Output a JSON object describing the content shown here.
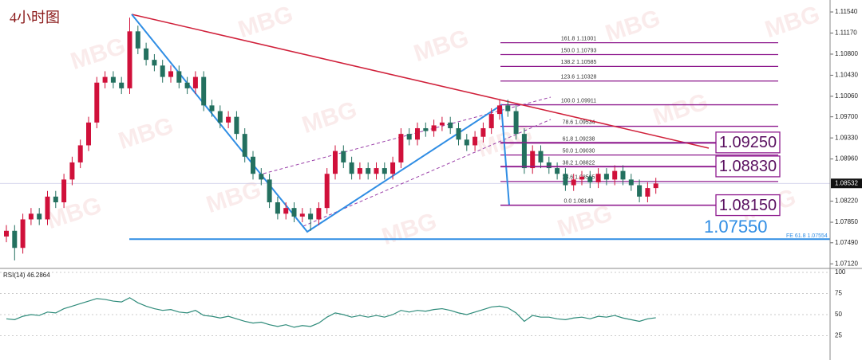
{
  "chart_data": [
    {
      "type": "candlestick",
      "title": "4小时图",
      "watermark": "MBG",
      "ylim": [
        1.0704,
        1.1175
      ],
      "yticks": [
        {
          "value": 1.1154,
          "label": "1.11540"
        },
        {
          "value": 1.1117,
          "label": "1.11170"
        },
        {
          "value": 1.108,
          "label": "1.10800"
        },
        {
          "value": 1.1043,
          "label": "1.10430"
        },
        {
          "value": 1.1006,
          "label": "1.10060"
        },
        {
          "value": 1.097,
          "label": "1.09700"
        },
        {
          "value": 1.0933,
          "label": "1.09330"
        },
        {
          "value": 1.0896,
          "label": "1.08960"
        },
        {
          "value": 1.0822,
          "label": "1.08220"
        },
        {
          "value": 1.0785,
          "label": "1.07850"
        },
        {
          "value": 1.0749,
          "label": "1.07490"
        },
        {
          "value": 1.0712,
          "label": "1.07120"
        }
      ],
      "up_color": "#d0103a",
      "down_color": "#23705f",
      "last_price": 1.08532,
      "open": [
        1.076,
        1.077,
        1.074,
        1.079,
        1.08,
        1.079,
        1.083,
        1.082,
        1.086,
        1.089,
        1.092,
        1.096,
        1.103,
        1.104,
        1.103,
        1.102,
        1.112,
        1.109,
        1.107,
        1.106,
        1.104,
        1.105,
        1.103,
        1.102,
        1.104,
        1.099,
        1.098,
        1.096,
        1.097,
        1.094,
        1.09,
        1.087,
        1.086,
        1.082,
        1.08,
        1.081,
        1.0795,
        1.08,
        1.079,
        1.081,
        1.087,
        1.091,
        1.089,
        1.087,
        1.088,
        1.087,
        1.088,
        1.087,
        1.089,
        1.094,
        1.093,
        1.095,
        1.0945,
        1.0955,
        1.096,
        1.095,
        1.093,
        1.092,
        1.0935,
        1.095,
        1.0975,
        1.099,
        1.098,
        1.094,
        1.088,
        1.091,
        1.089,
        1.088,
        1.087,
        1.085,
        1.086,
        1.0865,
        1.0855,
        1.087,
        1.086,
        1.0875,
        1.086,
        1.085,
        1.083,
        1.0845
      ],
      "high": [
        1.078,
        1.078,
        1.08,
        1.081,
        1.081,
        1.084,
        1.084,
        1.087,
        1.09,
        1.093,
        1.097,
        1.104,
        1.105,
        1.105,
        1.104,
        1.1144,
        1.113,
        1.11,
        1.108,
        1.107,
        1.106,
        1.106,
        1.104,
        1.105,
        1.105,
        1.1,
        1.099,
        1.098,
        1.098,
        1.095,
        1.091,
        1.088,
        1.087,
        1.083,
        1.082,
        1.082,
        1.081,
        1.081,
        1.082,
        1.088,
        1.092,
        1.092,
        1.09,
        1.089,
        1.089,
        1.089,
        1.089,
        1.09,
        1.095,
        1.095,
        1.096,
        1.096,
        1.0965,
        1.097,
        1.097,
        1.096,
        1.094,
        1.0945,
        1.096,
        1.0985,
        1.1,
        1.1,
        1.099,
        1.095,
        1.092,
        1.092,
        1.09,
        1.089,
        1.088,
        1.087,
        1.0875,
        1.0875,
        1.088,
        1.088,
        1.0885,
        1.0885,
        1.087,
        1.086,
        1.0855,
        1.0863
      ],
      "low": [
        1.075,
        1.0718,
        1.073,
        1.078,
        1.078,
        1.078,
        1.081,
        1.081,
        1.085,
        1.088,
        1.091,
        1.095,
        1.102,
        1.102,
        1.101,
        1.101,
        1.108,
        1.106,
        1.105,
        1.103,
        1.103,
        1.102,
        1.101,
        1.101,
        1.098,
        1.097,
        1.095,
        1.095,
        1.093,
        1.089,
        1.086,
        1.085,
        1.081,
        1.079,
        1.079,
        1.0785,
        1.0785,
        1.077,
        1.078,
        1.08,
        1.086,
        1.088,
        1.086,
        1.086,
        1.086,
        1.086,
        1.086,
        1.086,
        1.088,
        1.092,
        1.092,
        1.0935,
        1.0935,
        1.0945,
        1.094,
        1.092,
        1.091,
        1.091,
        1.0925,
        1.094,
        1.0965,
        1.097,
        1.093,
        1.087,
        1.087,
        1.088,
        1.087,
        1.086,
        1.084,
        1.084,
        1.085,
        1.0845,
        1.0845,
        1.085,
        1.085,
        1.085,
        1.084,
        1.082,
        1.082,
        1.0835
      ],
      "close": [
        1.077,
        1.074,
        1.079,
        1.08,
        1.079,
        1.083,
        1.082,
        1.086,
        1.089,
        1.092,
        1.096,
        1.103,
        1.104,
        1.103,
        1.102,
        1.112,
        1.109,
        1.107,
        1.106,
        1.104,
        1.105,
        1.103,
        1.102,
        1.104,
        1.099,
        1.098,
        1.096,
        1.097,
        1.094,
        1.09,
        1.087,
        1.086,
        1.082,
        1.08,
        1.081,
        1.0795,
        1.08,
        1.079,
        1.081,
        1.087,
        1.091,
        1.089,
        1.087,
        1.088,
        1.087,
        1.088,
        1.087,
        1.089,
        1.094,
        1.093,
        1.095,
        1.0945,
        1.0955,
        1.096,
        1.095,
        1.093,
        1.092,
        1.0935,
        1.095,
        1.0975,
        1.099,
        1.098,
        1.094,
        1.088,
        1.091,
        1.089,
        1.088,
        1.087,
        1.085,
        1.086,
        1.0865,
        1.0855,
        1.087,
        1.086,
        1.0875,
        1.086,
        1.085,
        1.083,
        1.0845,
        1.0853
      ],
      "fibonacci": [
        {
          "value": 1.11001,
          "label": "161.8  1.11001"
        },
        {
          "value": 1.10793,
          "label": "150.0  1.10793"
        },
        {
          "value": 1.10585,
          "label": "138.2  1.10585"
        },
        {
          "value": 1.10328,
          "label": "123.6  1.10328"
        },
        {
          "value": 1.09911,
          "label": "100.0  1.09911"
        },
        {
          "value": 1.09534,
          "label": "78.6  1.09534"
        },
        {
          "value": 1.09238,
          "label": "61.8  1.09238"
        },
        {
          "value": 1.0903,
          "label": "50.0  1.09030"
        },
        {
          "value": 1.08822,
          "label": "38.2  1.08822"
        },
        {
          "value": 1.08565,
          "label": "23.6  1.08565"
        },
        {
          "value": 1.08148,
          "label": "0.0  1.08148"
        }
      ],
      "levels": [
        {
          "value": 1.0925,
          "label": "1.09250"
        },
        {
          "value": 1.0883,
          "label": "1.08830"
        },
        {
          "value": 1.0815,
          "label": "1.08150"
        }
      ],
      "fe_target": {
        "value": 1.07554,
        "label": "FE 61.8  1.07554",
        "big_label": "1.07550"
      }
    },
    {
      "type": "line",
      "title": "RSI(14) 46.2864",
      "color": "#2e8b7a",
      "ylim": [
        0,
        100
      ],
      "yticks": [
        100,
        75,
        50,
        25
      ],
      "values": [
        45,
        44,
        48,
        50,
        49,
        53,
        52,
        57,
        60,
        63,
        66,
        69,
        68,
        66,
        65,
        70,
        64,
        60,
        57,
        55,
        56,
        53,
        52,
        55,
        49,
        48,
        46,
        48,
        45,
        42,
        40,
        41,
        38,
        36,
        38,
        35,
        37,
        36,
        40,
        47,
        52,
        50,
        47,
        49,
        47,
        49,
        47,
        50,
        55,
        53,
        55,
        54,
        56,
        57,
        55,
        52,
        50,
        53,
        56,
        59,
        60,
        58,
        52,
        42,
        49,
        47,
        47,
        45,
        44,
        46,
        47,
        45,
        48,
        47,
        49,
        46,
        44,
        42,
        45,
        46.3
      ]
    }
  ]
}
